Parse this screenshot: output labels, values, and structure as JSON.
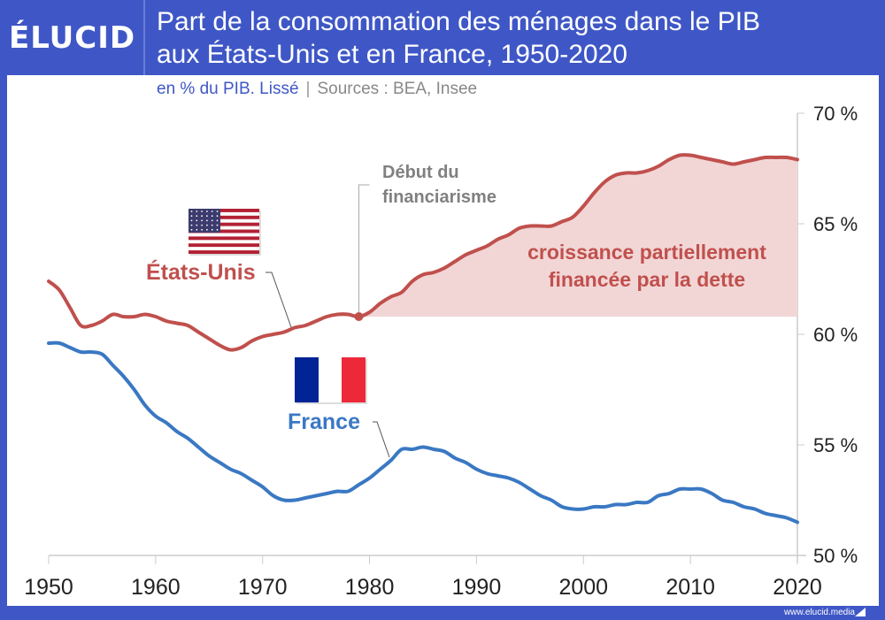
{
  "brand": {
    "logo_text": "ÉLUCID",
    "footer_url": "www.elucid.media"
  },
  "header": {
    "title_line1": "Part de la consommation des ménages dans le PIB",
    "title_line2": "aux États-Unis et en France, 1950-2020"
  },
  "subtitle": {
    "unit": "en % du PIB. Lissé",
    "separator": "|",
    "sources": "Sources : BEA, Insee"
  },
  "colors": {
    "brand_blue": "#3f57c6",
    "us_red": "#c0504d",
    "us_fill": "#f2d6d6",
    "france_blue": "#3a78c3",
    "axis": "#cccccc",
    "text_dark": "#222222",
    "annotation_gray": "#808080"
  },
  "annotations": {
    "event_label_line1": "Début du",
    "event_label_line2": "financiarisme",
    "event_year": 1979,
    "area_label_line1": "croissance partiellement",
    "area_label_line2": "financée par la dette",
    "us_label": "États-Unis",
    "france_label": "France",
    "us_flag_icon": "us-flag-icon",
    "france_flag_icon": "france-flag-icon"
  },
  "chart_data": {
    "type": "line",
    "title": "Part de la consommation des ménages dans le PIB aux États-Unis et en France, 1950-2020",
    "xlabel": "",
    "ylabel": "en % du PIB",
    "xlim": [
      1950,
      2020
    ],
    "ylim": [
      50,
      70
    ],
    "x_ticks": [
      1950,
      1960,
      1970,
      1980,
      1990,
      2000,
      2010,
      2020
    ],
    "x_tick_labels": [
      "1950",
      "1960",
      "1970",
      "1980",
      "1990",
      "2000",
      "2010",
      "2020"
    ],
    "y_ticks": [
      50,
      55,
      60,
      65,
      70
    ],
    "y_tick_labels": [
      "50 %",
      "55 %",
      "60 %",
      "65 %",
      "70 %"
    ],
    "y_axis_side": "right",
    "grid": false,
    "legend": "inline labels with flags",
    "shaded_area": {
      "series": "États-Unis",
      "from_year": 1979,
      "to_year": 2020,
      "baseline": 60.8
    },
    "series": [
      {
        "name": "États-Unis",
        "color": "#c0504d",
        "x": [
          1950,
          1951,
          1952,
          1953,
          1954,
          1955,
          1956,
          1957,
          1958,
          1959,
          1960,
          1961,
          1962,
          1963,
          1964,
          1965,
          1966,
          1967,
          1968,
          1969,
          1970,
          1971,
          1972,
          1973,
          1974,
          1975,
          1976,
          1977,
          1978,
          1979,
          1980,
          1981,
          1982,
          1983,
          1984,
          1985,
          1986,
          1987,
          1988,
          1989,
          1990,
          1991,
          1992,
          1993,
          1994,
          1995,
          1996,
          1997,
          1998,
          1999,
          2000,
          2001,
          2002,
          2003,
          2004,
          2005,
          2006,
          2007,
          2008,
          2009,
          2010,
          2011,
          2012,
          2013,
          2014,
          2015,
          2016,
          2017,
          2018,
          2019,
          2020
        ],
        "values": [
          62.4,
          62.0,
          61.2,
          60.4,
          60.4,
          60.6,
          60.9,
          60.8,
          60.8,
          60.9,
          60.8,
          60.6,
          60.5,
          60.4,
          60.1,
          59.8,
          59.5,
          59.3,
          59.4,
          59.7,
          59.9,
          60.0,
          60.1,
          60.3,
          60.4,
          60.6,
          60.8,
          60.9,
          60.9,
          60.8,
          61.0,
          61.4,
          61.7,
          61.9,
          62.4,
          62.7,
          62.8,
          63.0,
          63.3,
          63.6,
          63.8,
          64.0,
          64.3,
          64.5,
          64.8,
          64.9,
          64.9,
          64.9,
          65.1,
          65.3,
          65.8,
          66.4,
          66.9,
          67.2,
          67.3,
          67.3,
          67.4,
          67.6,
          67.9,
          68.1,
          68.1,
          68.0,
          67.9,
          67.8,
          67.7,
          67.8,
          67.9,
          68.0,
          68.0,
          68.0,
          67.9
        ]
      },
      {
        "name": "France",
        "color": "#3a78c3",
        "x": [
          1950,
          1951,
          1952,
          1953,
          1954,
          1955,
          1956,
          1957,
          1958,
          1959,
          1960,
          1961,
          1962,
          1963,
          1964,
          1965,
          1966,
          1967,
          1968,
          1969,
          1970,
          1971,
          1972,
          1973,
          1974,
          1975,
          1976,
          1977,
          1978,
          1979,
          1980,
          1981,
          1982,
          1983,
          1984,
          1985,
          1986,
          1987,
          1988,
          1989,
          1990,
          1991,
          1992,
          1993,
          1994,
          1995,
          1996,
          1997,
          1998,
          1999,
          2000,
          2001,
          2002,
          2003,
          2004,
          2005,
          2006,
          2007,
          2008,
          2009,
          2010,
          2011,
          2012,
          2013,
          2014,
          2015,
          2016,
          2017,
          2018,
          2019,
          2020
        ],
        "values": [
          59.6,
          59.6,
          59.4,
          59.2,
          59.2,
          59.1,
          58.6,
          58.1,
          57.5,
          56.8,
          56.3,
          56.0,
          55.6,
          55.3,
          54.9,
          54.5,
          54.2,
          53.9,
          53.7,
          53.4,
          53.1,
          52.7,
          52.5,
          52.5,
          52.6,
          52.7,
          52.8,
          52.9,
          52.9,
          53.2,
          53.5,
          53.9,
          54.3,
          54.8,
          54.8,
          54.9,
          54.8,
          54.7,
          54.4,
          54.2,
          53.9,
          53.7,
          53.6,
          53.5,
          53.3,
          53.0,
          52.7,
          52.5,
          52.2,
          52.1,
          52.1,
          52.2,
          52.2,
          52.3,
          52.3,
          52.4,
          52.4,
          52.7,
          52.8,
          53.0,
          53.0,
          53.0,
          52.8,
          52.5,
          52.4,
          52.2,
          52.1,
          51.9,
          51.8,
          51.7,
          51.5
        ]
      }
    ]
  }
}
